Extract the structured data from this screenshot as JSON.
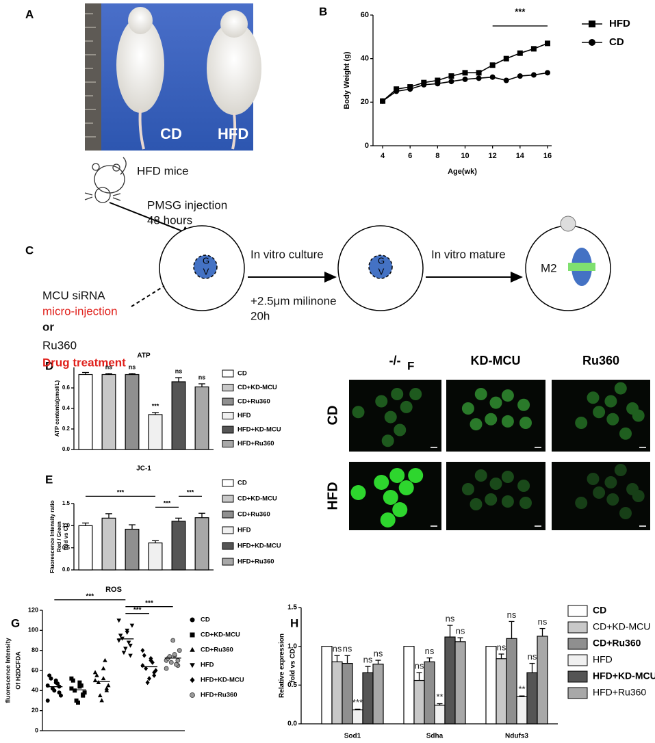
{
  "panels": [
    "A",
    "B",
    "C",
    "D",
    "E",
    "F",
    "G",
    "H"
  ],
  "photo": {
    "labels": [
      "CD",
      "HFD"
    ]
  },
  "diagram": {
    "mouse_label": "HFD mice",
    "step1": [
      "PMSG injection",
      "48 hours"
    ],
    "gv": [
      "G",
      "V"
    ],
    "step2": {
      "title": "In vitro culture",
      "notes": [
        "+2.5μm milinone",
        "20h"
      ]
    },
    "step3": "In vitro mature",
    "stage": "M2",
    "treatments": [
      "MCU siRNA",
      "micro-injection",
      "or",
      "Ru360",
      "Drug treatment"
    ]
  },
  "images": {
    "columns": [
      "-/-",
      "KD-MCU",
      "Ru360"
    ],
    "rows": [
      "CD",
      "HFD"
    ]
  },
  "chart_data": [
    {
      "type": "line",
      "xlabel": "Age(wk)",
      "ylabel": "Body Weight (g)",
      "x": [
        4,
        5,
        6,
        7,
        8,
        9,
        10,
        11,
        12,
        13,
        14,
        15,
        16
      ],
      "xlim": [
        3.3,
        16.3
      ],
      "xticks": [
        4,
        6,
        8,
        10,
        12,
        14,
        16
      ],
      "ylim": [
        0,
        60
      ],
      "yticks": [
        0,
        20,
        40,
        60
      ],
      "series": [
        {
          "name": "HFD",
          "color": "#000000",
          "marker": "square",
          "values": [
            20.5,
            26,
            27,
            29,
            30,
            32,
            33.5,
            33.5,
            37,
            40,
            42.5,
            44.5,
            47
          ]
        },
        {
          "name": "CD",
          "color": "#000000",
          "marker": "circle",
          "values": [
            20.5,
            25,
            26,
            28,
            28.5,
            29.5,
            30.5,
            31,
            31.5,
            30,
            32,
            32.5,
            33.5
          ]
        }
      ],
      "annotation": {
        "text": "***",
        "x": [
          12,
          16
        ],
        "y": 55
      },
      "legend": "right"
    },
    {
      "type": "bar",
      "title": "ATP",
      "ylabel": [
        "ATP contents(pmol/L)"
      ],
      "categories": [
        "CD",
        "CD+KD-MCU",
        "CD+Ru360",
        "HFD",
        "HFD+KD-MCU",
        "HFD+Ru360"
      ],
      "colors": [
        "#ffffff",
        "#c8c8c8",
        "#8f8f8f",
        "#f0f0f0",
        "#555555",
        "#a8a8a8"
      ],
      "values": [
        0.73,
        0.73,
        0.73,
        0.34,
        0.66,
        0.61
      ],
      "errors": [
        0.02,
        0.01,
        0.01,
        0.02,
        0.04,
        0.03
      ],
      "significance": [
        null,
        "ns",
        "ns",
        "***",
        "ns",
        "ns"
      ],
      "ylim": [
        0,
        0.8
      ],
      "yticks": [
        {
          "value": 0,
          "label": "0.0"
        },
        0.2,
        0.4,
        0.6
      ],
      "legend": "right"
    },
    {
      "type": "bar",
      "title": "JC-1",
      "ylabel": [
        "Fluorescence Intensity ratio",
        "Red / Green",
        "fold vs CD"
      ],
      "categories": [
        "CD",
        "CD+KD-MCU",
        "CD+Ru360",
        "HFD",
        "HFD+KD-MCU",
        "HFD+Ru360"
      ],
      "colors": [
        "#ffffff",
        "#c8c8c8",
        "#8f8f8f",
        "#f0f0f0",
        "#555555",
        "#a8a8a8"
      ],
      "values": [
        1.0,
        1.17,
        0.92,
        0.61,
        1.1,
        1.18
      ],
      "errors": [
        0.06,
        0.1,
        0.1,
        0.05,
        0.07,
        0.1
      ],
      "brackets": [
        {
          "between": [
            "CD",
            "HFD"
          ],
          "text": "***"
        },
        {
          "between": [
            "HFD",
            "HFD+KD-MCU"
          ],
          "text": "***"
        },
        {
          "between": [
            "HFD+KD-MCU",
            "HFD+Ru360"
          ],
          "text": "***"
        }
      ],
      "ylim": [
        0,
        1.5
      ],
      "yticks": [
        {
          "value": 0,
          "label": "0.0"
        },
        0.5,
        {
          "value": 1,
          "label": "1.0"
        },
        1.5
      ],
      "legend": "right"
    },
    {
      "type": "strip",
      "title": "ROS",
      "ylabel": [
        "fluorescence Intensity",
        "Of H2DCFDA"
      ],
      "series": [
        {
          "name": "CD",
          "marker": "circle",
          "color": "#000000",
          "values": [
            45,
            38,
            50,
            42,
            55,
            35,
            47,
            40,
            52,
            30,
            44,
            48
          ]
        },
        {
          "name": "CD+KD-MCU",
          "marker": "square",
          "color": "#000000",
          "values": [
            42,
            35,
            48,
            30,
            50,
            38,
            45,
            28,
            40,
            52,
            36,
            44
          ]
        },
        {
          "name": "CD+Ru360",
          "marker": "triangle",
          "color": "#000000",
          "values": [
            50,
            40,
            62,
            35,
            55,
            45,
            70,
            30,
            48,
            58,
            42,
            52
          ]
        },
        {
          "name": "HFD",
          "marker": "triangle-down",
          "color": "#000000",
          "values": [
            90,
            85,
            100,
            78,
            95,
            105,
            88,
            82,
            92,
            110,
            75,
            98
          ]
        },
        {
          "name": "HFD+KD-MCU",
          "marker": "diamond",
          "color": "#000000",
          "values": [
            65,
            55,
            70,
            48,
            75,
            60,
            68,
            52,
            62,
            80,
            58,
            72
          ]
        },
        {
          "name": "HFD+Ru360",
          "marker": "circle",
          "color": "#9a9a9a",
          "values": [
            70,
            65,
            75,
            68,
            72,
            80,
            66,
            90,
            74,
            62,
            70,
            76
          ]
        }
      ],
      "brackets": [
        {
          "between": [
            "CD",
            "HFD"
          ],
          "text": "***"
        },
        {
          "between": [
            "HFD",
            "HFD+KD-MCU"
          ],
          "text": "***"
        },
        {
          "between": [
            "HFD",
            "HFD+Ru360"
          ],
          "text": "***"
        }
      ],
      "ylim": [
        0,
        120
      ],
      "yticks": [
        0,
        20,
        40,
        60,
        80,
        100,
        120
      ],
      "legend": "right"
    },
    {
      "type": "grouped-bar",
      "ylabel": [
        "Relative expression",
        "fold vs CD"
      ],
      "categories": [
        "Sod1",
        "Sdha",
        "Ndufs3"
      ],
      "series": [
        {
          "name": "CD",
          "color": "#ffffff",
          "values": [
            1.0,
            1.0,
            1.0
          ]
        },
        {
          "name": "CD+KD-MCU",
          "color": "#c8c8c8",
          "values": [
            0.8,
            0.56,
            0.84
          ],
          "errors": [
            0.08,
            0.1,
            0.06
          ],
          "significance": [
            "ns",
            "ns",
            "ns"
          ]
        },
        {
          "name": "CD+Ru360",
          "color": "#8f8f8f",
          "values": [
            0.78,
            0.8,
            1.1
          ],
          "errors": [
            0.1,
            0.05,
            0.22
          ],
          "significance": [
            "ns",
            "ns",
            "ns"
          ]
        },
        {
          "name": "HFD",
          "color": "#f0f0f0",
          "values": [
            0.18,
            0.24,
            0.35
          ],
          "errors": [
            0.01,
            0.02,
            0.01
          ],
          "significance": [
            "***",
            "**",
            "**"
          ]
        },
        {
          "name": "HFD+KD-MCU",
          "color": "#555555",
          "values": [
            0.66,
            1.12,
            0.66
          ],
          "errors": [
            0.08,
            0.15,
            0.12
          ],
          "significance": [
            "ns",
            "ns",
            "ns"
          ]
        },
        {
          "name": "HFD+Ru360",
          "color": "#a8a8a8",
          "values": [
            0.77,
            1.06,
            1.13
          ],
          "errors": [
            0.05,
            0.05,
            0.1
          ],
          "significance": [
            "ns",
            "ns",
            "ns"
          ]
        }
      ],
      "ylim": [
        0,
        1.5
      ],
      "yticks": [
        {
          "value": 0,
          "label": "0.0"
        },
        0.5,
        {
          "value": 1,
          "label": "1.0"
        },
        1.5
      ],
      "legend": "right"
    }
  ]
}
